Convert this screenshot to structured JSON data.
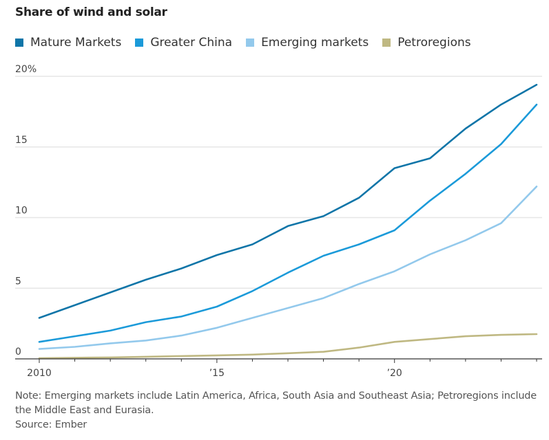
{
  "chart_data": {
    "type": "line",
    "title": "Share of wind and solar",
    "xlabel": "",
    "ylabel": "",
    "x": [
      2010,
      2011,
      2012,
      2013,
      2014,
      2015,
      2016,
      2017,
      2018,
      2019,
      2020,
      2021,
      2022,
      2023,
      2024
    ],
    "xlim": [
      2010,
      2024
    ],
    "ylim": [
      0,
      20
    ],
    "x_ticks": [
      2010,
      2011,
      2012,
      2013,
      2014,
      2015,
      2016,
      2017,
      2018,
      2019,
      2020,
      2021,
      2022,
      2023,
      2024
    ],
    "x_tick_labels": [
      {
        "value": 2010,
        "label": "2010"
      },
      {
        "value": 2015,
        "label": "’15"
      },
      {
        "value": 2020,
        "label": "’20"
      }
    ],
    "y_ticks": [
      {
        "value": 20,
        "label": "20%"
      },
      {
        "value": 15,
        "label": "15"
      },
      {
        "value": 10,
        "label": "10"
      },
      {
        "value": 5,
        "label": "5"
      },
      {
        "value": 0,
        "label": "0"
      }
    ],
    "grid": true,
    "legend_position": "top-left",
    "series": [
      {
        "name": "Mature Markets",
        "color": "#0f75a8",
        "values": [
          2.9,
          3.8,
          4.7,
          5.6,
          6.4,
          7.35,
          8.1,
          9.4,
          10.1,
          11.4,
          13.5,
          14.2,
          16.3,
          18.0,
          19.4
        ]
      },
      {
        "name": "Greater China",
        "color": "#1b9ad9",
        "values": [
          1.2,
          1.6,
          2.0,
          2.6,
          3.0,
          3.7,
          4.8,
          6.1,
          7.3,
          8.1,
          9.1,
          11.2,
          13.1,
          15.2,
          18.0
        ]
      },
      {
        "name": "Emerging markets",
        "color": "#93c9ec",
        "values": [
          0.7,
          0.85,
          1.1,
          1.3,
          1.65,
          2.2,
          2.9,
          3.6,
          4.3,
          5.3,
          6.2,
          7.4,
          8.4,
          9.6,
          12.2
        ]
      },
      {
        "name": "Petroregions",
        "color": "#bfb882",
        "values": [
          0.05,
          0.08,
          0.1,
          0.15,
          0.2,
          0.25,
          0.3,
          0.4,
          0.5,
          0.8,
          1.2,
          1.4,
          1.6,
          1.7,
          1.75
        ]
      }
    ]
  },
  "note": "Note: Emerging markets include Latin America, Africa, South Asia and Southeast Asia; Petroregions include the Middle East and Eurasia.",
  "source": "Source: Ember"
}
